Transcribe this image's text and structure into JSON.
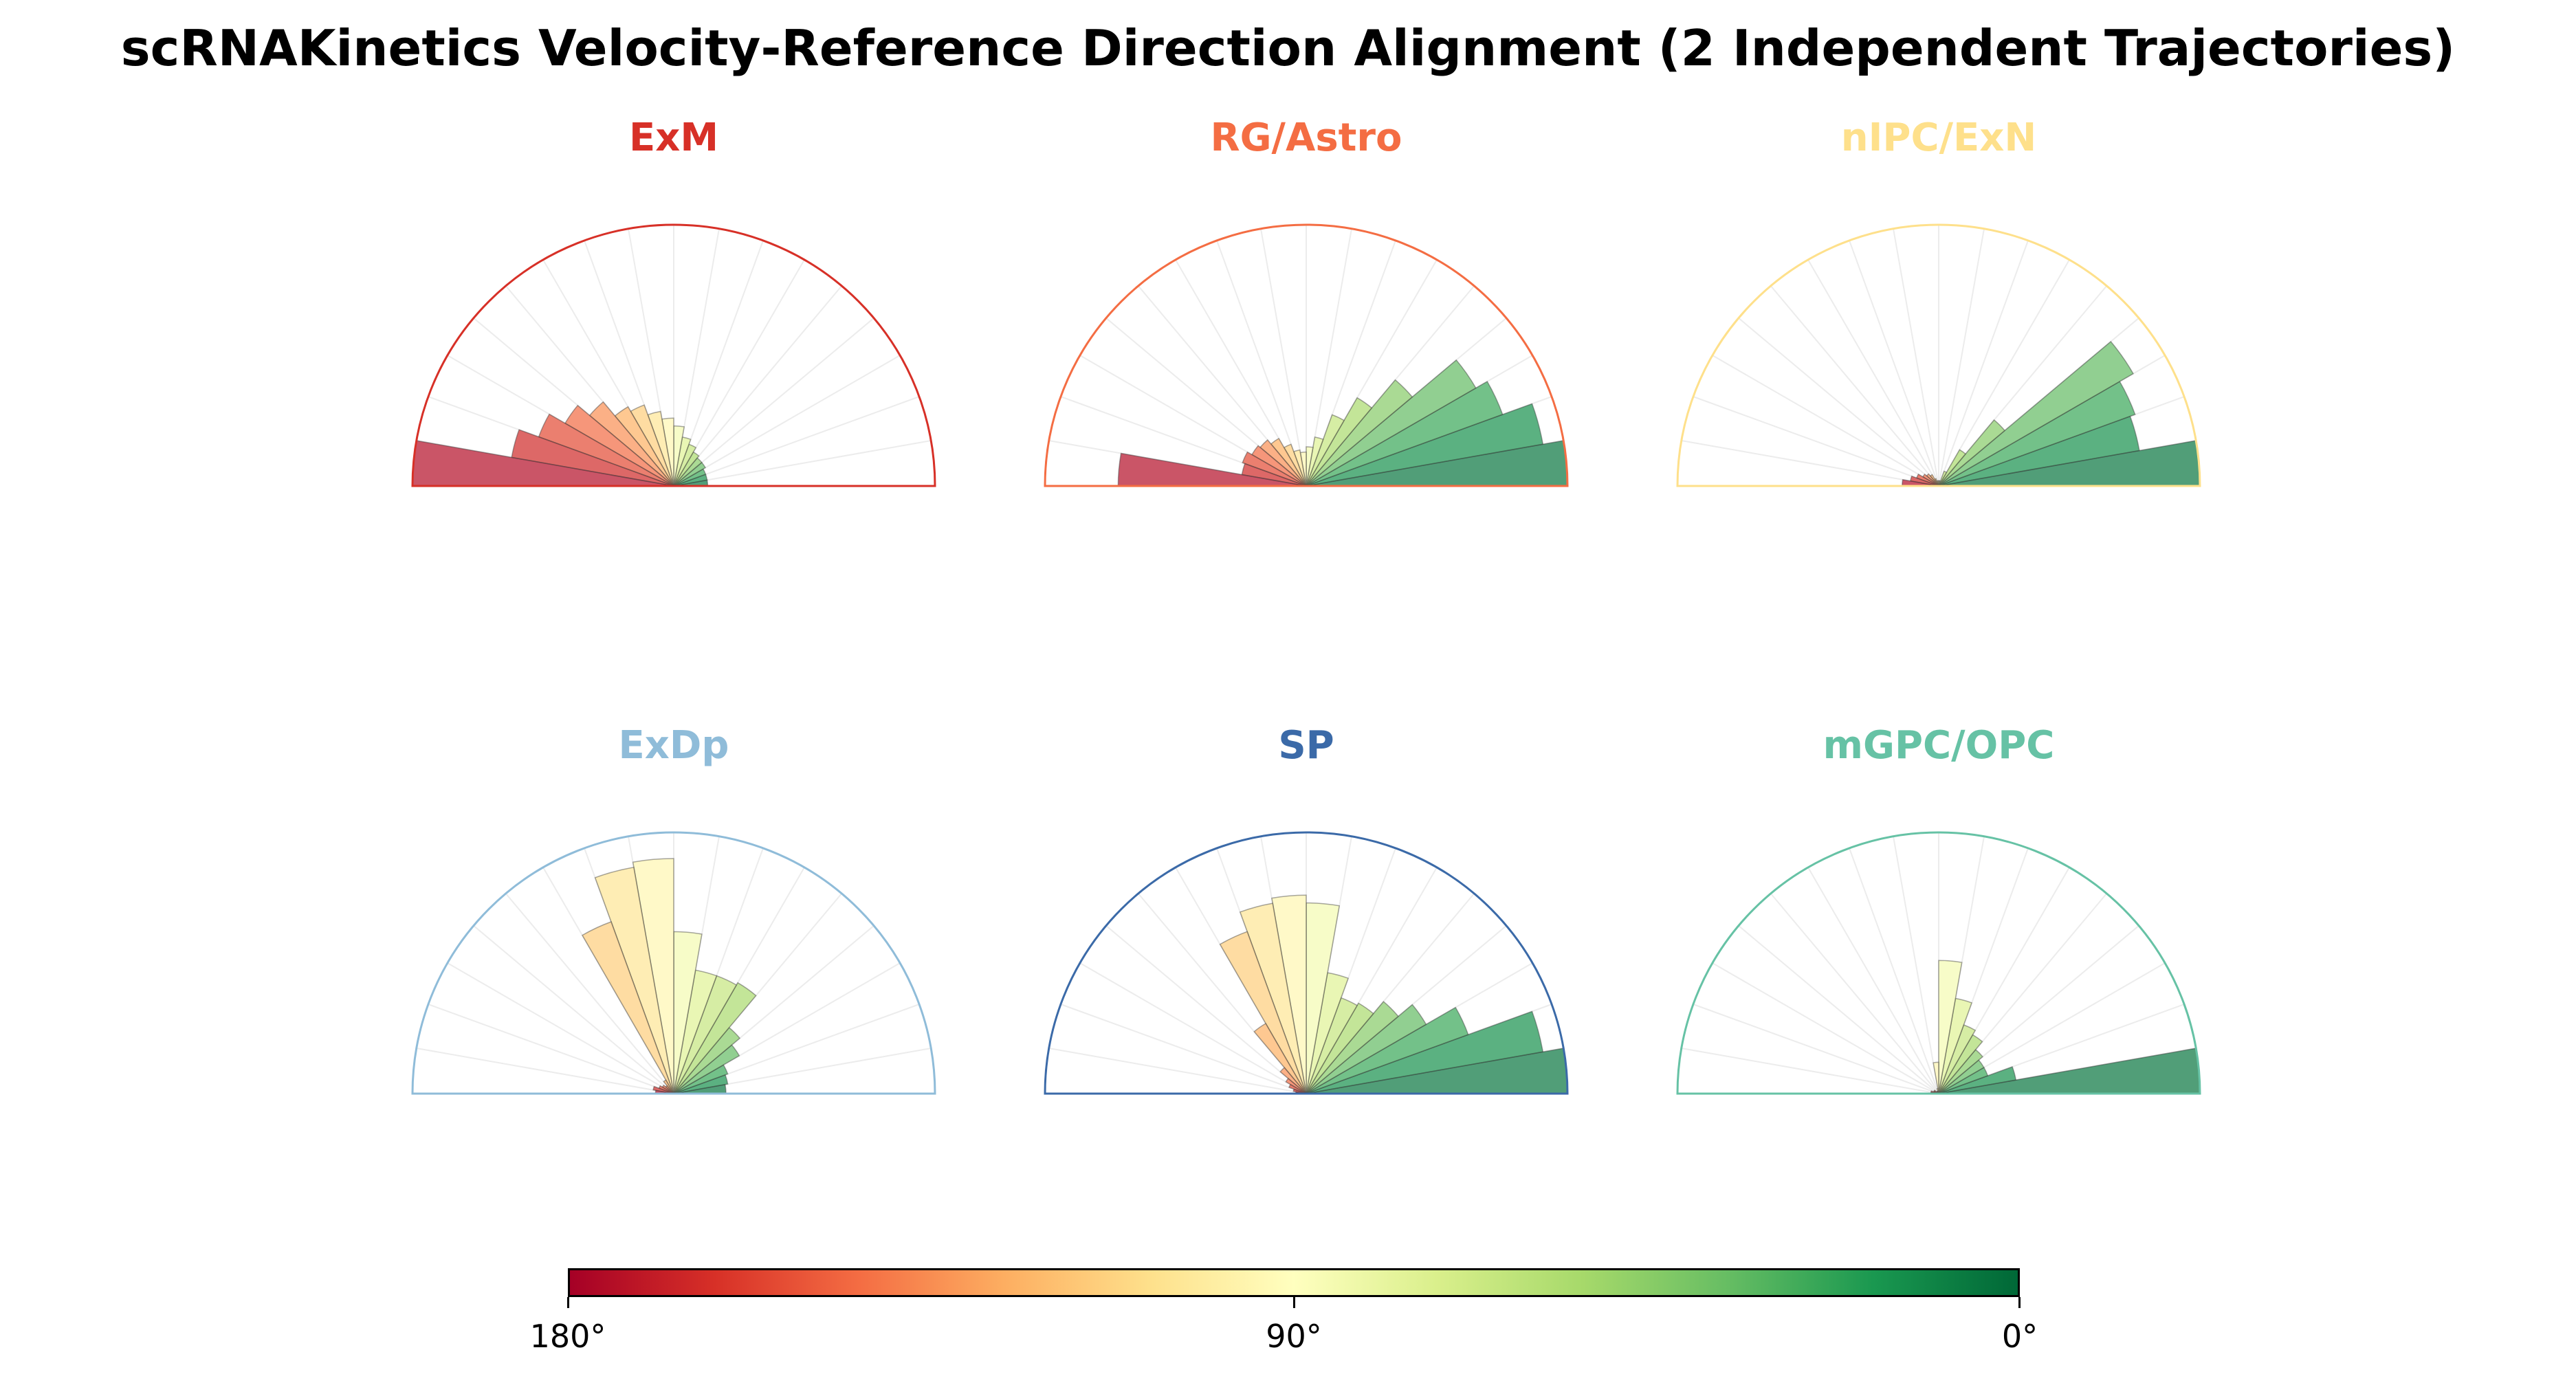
{
  "title": "scRNAKinetics Velocity-Reference Direction Alignment (2 Independent Trajectories)",
  "colormap": {
    "name": "RdYlGn",
    "stops": [
      "#a50026",
      "#d73027",
      "#f46d43",
      "#fdae61",
      "#fee08b",
      "#ffffbf",
      "#d9ef8b",
      "#a6d96a",
      "#66bd63",
      "#1a9850",
      "#006837"
    ],
    "tick_labels": [
      "180°",
      "90°",
      "0°"
    ]
  },
  "chart_data": [
    {
      "type": "polar-histogram",
      "title": "ExM",
      "title_color": "#d73027",
      "edge_color": "#d73027",
      "bin_width_deg": 10,
      "angles_deg": [
        5,
        15,
        25,
        35,
        45,
        55,
        65,
        75,
        85,
        95,
        105,
        115,
        125,
        135,
        145,
        155,
        165,
        175
      ],
      "values": [
        0.13,
        0.13,
        0.13,
        0.14,
        0.14,
        0.15,
        0.17,
        0.19,
        0.23,
        0.26,
        0.29,
        0.33,
        0.35,
        0.42,
        0.48,
        0.55,
        0.63,
        1.0
      ],
      "ylim": [
        0,
        1
      ],
      "grid": true
    },
    {
      "type": "polar-histogram",
      "title": "RG/Astro",
      "title_color": "#f46d43",
      "edge_color": "#f46d43",
      "bin_width_deg": 10,
      "angles_deg": [
        5,
        15,
        25,
        35,
        45,
        55,
        65,
        75,
        85,
        95,
        105,
        115,
        125,
        135,
        145,
        155,
        165,
        175
      ],
      "values": [
        1.0,
        0.92,
        0.8,
        0.75,
        0.53,
        0.39,
        0.29,
        0.19,
        0.15,
        0.13,
        0.14,
        0.17,
        0.21,
        0.23,
        0.24,
        0.26,
        0.25,
        0.72
      ],
      "ylim": [
        0,
        1
      ],
      "grid": true
    },
    {
      "type": "polar-histogram",
      "title": "nIPC/ExN",
      "title_color": "#fee08b",
      "edge_color": "#fee08b",
      "bin_width_deg": 10,
      "angles_deg": [
        5,
        15,
        25,
        35,
        45,
        55,
        65,
        75,
        85,
        95,
        105,
        115,
        125,
        135,
        145,
        155,
        165,
        175
      ],
      "values": [
        1.0,
        0.78,
        0.8,
        0.86,
        0.33,
        0.16,
        0.06,
        0.02,
        0.02,
        0.02,
        0.02,
        0.03,
        0.05,
        0.06,
        0.07,
        0.09,
        0.11,
        0.14
      ],
      "ylim": [
        0,
        1
      ],
      "grid": true
    },
    {
      "type": "polar-histogram",
      "title": "ExDp",
      "title_color": "#8fbcd9",
      "edge_color": "#8fbcd9",
      "bin_width_deg": 10,
      "angles_deg": [
        5,
        15,
        25,
        35,
        45,
        55,
        65,
        75,
        85,
        95,
        105,
        115,
        125,
        135,
        145,
        155,
        165,
        175
      ],
      "values": [
        0.2,
        0.21,
        0.22,
        0.29,
        0.33,
        0.49,
        0.48,
        0.48,
        0.62,
        0.9,
        0.88,
        0.7,
        0.06,
        0.04,
        0.05,
        0.06,
        0.08,
        0.07
      ],
      "ylim": [
        0,
        1
      ],
      "grid": true
    },
    {
      "type": "polar-histogram",
      "title": "SP",
      "title_color": "#3b6aa8",
      "edge_color": "#3b6aa8",
      "bin_width_deg": 10,
      "angles_deg": [
        5,
        15,
        25,
        35,
        45,
        55,
        65,
        75,
        85,
        95,
        105,
        115,
        125,
        135,
        145,
        155,
        165,
        175
      ],
      "values": [
        1.0,
        0.92,
        0.66,
        0.53,
        0.46,
        0.4,
        0.39,
        0.47,
        0.73,
        0.76,
        0.74,
        0.66,
        0.31,
        0.13,
        0.09,
        0.07,
        0.05,
        0.04
      ],
      "ylim": [
        0,
        1
      ],
      "grid": true
    },
    {
      "type": "polar-histogram",
      "title": "mGPC/OPC",
      "title_color": "#66c2a5",
      "edge_color": "#66c2a5",
      "bin_width_deg": 10,
      "angles_deg": [
        5,
        15,
        25,
        35,
        45,
        55,
        65,
        75,
        85,
        95,
        105,
        115,
        125,
        135,
        145,
        155,
        165,
        175
      ],
      "values": [
        1.0,
        0.3,
        0.2,
        0.2,
        0.22,
        0.26,
        0.28,
        0.37,
        0.51,
        0.12,
        0.02,
        0.01,
        0.01,
        0.01,
        0.02,
        0.02,
        0.03,
        0.03
      ],
      "ylim": [
        0,
        1
      ],
      "grid": true
    }
  ]
}
